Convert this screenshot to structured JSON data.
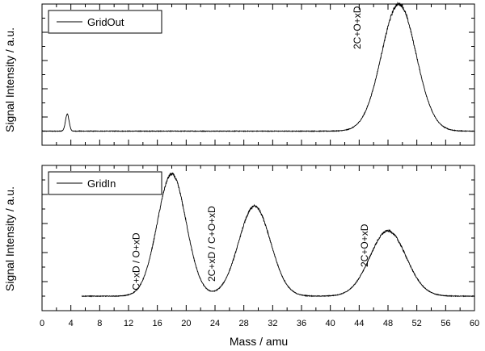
{
  "chart_data": {
    "type": "line",
    "xlabel": "Mass   /   amu",
    "ylabel": "Signal Intensity   /   a.u.",
    "xlim": [
      0,
      60
    ],
    "x_ticks": [
      "0",
      "4",
      "8",
      "12",
      "16",
      "20",
      "24",
      "28",
      "32",
      "36",
      "40",
      "44",
      "48",
      "52",
      "56",
      "60"
    ],
    "panels": [
      {
        "legend": "GridOut",
        "legend_position": "top-left",
        "ylim": [
          0,
          1
        ],
        "series": [
          {
            "name": "GridOut",
            "baseline": 0.1,
            "x_start": 0,
            "x_end": 60,
            "peaks": [
              {
                "center": 3.5,
                "height": 0.12,
                "width": 0.25
              },
              {
                "center": 49.5,
                "height": 0.9,
                "width": 2.4
              }
            ]
          }
        ],
        "annotations": [
          {
            "text": "2C+O+xD",
            "x": 44.2,
            "y": 0.68
          }
        ]
      },
      {
        "legend": "GridIn",
        "legend_position": "top-left",
        "ylim": [
          0,
          1
        ],
        "series": [
          {
            "name": "GridIn",
            "baseline": 0.1,
            "x_start": 5.5,
            "x_end": 60,
            "peaks": [
              {
                "center": 18.0,
                "height": 0.84,
                "width": 2.0
              },
              {
                "center": 29.5,
                "height": 0.62,
                "width": 2.2
              },
              {
                "center": 48.0,
                "height": 0.45,
                "width": 2.5
              }
            ]
          }
        ],
        "annotations": [
          {
            "text": "C+xD / O+xD",
            "x": 13.5,
            "y": 0.14
          },
          {
            "text": "2C+xD / C+O+xD",
            "x": 24.0,
            "y": 0.2
          },
          {
            "text": "2C+O+xD",
            "x": 45.2,
            "y": 0.3
          }
        ]
      }
    ]
  }
}
